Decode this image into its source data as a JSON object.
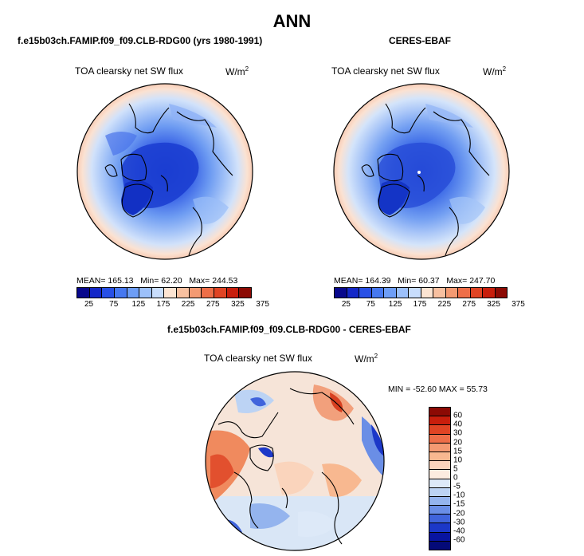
{
  "title": "ANN",
  "panels": [
    {
      "title": "f.e15b03ch.FAMIP.f09_f09.CLB-RDG00 (yrs 1980-1991)",
      "variable": "TOA clearsky net SW flux",
      "units": "W/m",
      "units_exp": "2",
      "mean_label": "MEAN=",
      "mean": "165.13",
      "min_label": "Min=",
      "min": "62.20",
      "max_label": "Max=",
      "max": "244.53"
    },
    {
      "title": "CERES-EBAF",
      "variable": "TOA clearsky net SW flux",
      "units": "W/m",
      "units_exp": "2",
      "mean_label": "MEAN=",
      "mean": "164.39",
      "min_label": "Min=",
      "min": "60.37",
      "max_label": "Max=",
      "max": "247.70"
    }
  ],
  "colorbar": {
    "tick_labels": [
      "25",
      "75",
      "125",
      "175",
      "225",
      "275",
      "325",
      "375"
    ],
    "colors": [
      "#08088c",
      "#1428c8",
      "#2850e6",
      "#4678f0",
      "#6e9ef6",
      "#9cc0fa",
      "#c8ddfc",
      "#fce4d2",
      "#f8c0a0",
      "#f49a72",
      "#ee6e48",
      "#e04424",
      "#c81e0c",
      "#8c0a04"
    ]
  },
  "diff_panel": {
    "title": "f.e15b03ch.FAMIP.f09_f09.CLB-RDG00 - CERES-EBAF",
    "variable": "TOA clearsky net SW flux",
    "units": "W/m",
    "units_exp": "2",
    "minmax_text": "MIN = -52.60 MAX =  55.73",
    "colorbar_labels": [
      "60",
      "40",
      "30",
      "20",
      "15",
      "10",
      "5",
      "0",
      "-5",
      "-10",
      "-15",
      "-20",
      "-30",
      "-40",
      "-60"
    ],
    "colorbar_colors": [
      "#8c0a04",
      "#c81e0c",
      "#e04424",
      "#ee6e48",
      "#f49a72",
      "#f8b890",
      "#fad4bc",
      "#fcece0",
      "#dde9f8",
      "#bcd3f4",
      "#94b4ee",
      "#6a8ee6",
      "#4064dc",
      "#1c38c8",
      "#0814a0",
      "#040a78"
    ]
  }
}
